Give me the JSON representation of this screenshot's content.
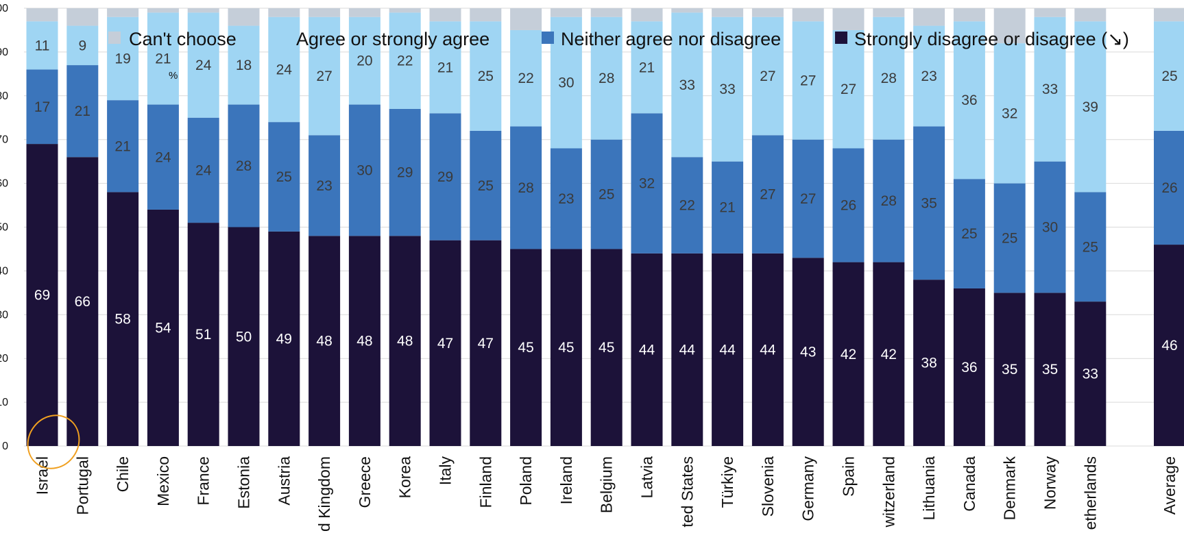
{
  "chart_data": {
    "type": "bar",
    "stacked": true,
    "orientation": "vertical",
    "y_unit_label": "%",
    "ylim": [
      0,
      100
    ],
    "grid": true,
    "legend_placement": "top",
    "categories": [
      "Israel",
      "Portugal",
      "Chile",
      "Mexico",
      "France",
      "Estonia",
      "Austria",
      "United Kingdom",
      "Greece",
      "Korea",
      "Italy",
      "Finland",
      "Poland",
      "Ireland",
      "Belgium",
      "Latvia",
      "United States",
      "Türkiye",
      "Slovenia",
      "Germany",
      "Spain",
      "Switzerland",
      "Lithuania",
      "Canada",
      "Denmark",
      "Norway",
      "Netherlands",
      "Average"
    ],
    "category_labels_shown": [
      "Israel",
      "Portugal",
      "Chile",
      "Mexico",
      "France",
      "Estonia",
      "Austria",
      "d Kingdom",
      "Greece",
      "Korea",
      "Italy",
      "Finland",
      "Poland",
      "Ireland",
      "Belgium",
      "Latvia",
      "ted States",
      "Türkiye",
      "Slovenia",
      "Germany",
      "Spain",
      "witzerland",
      "Lithuania",
      "Canada",
      "Denmark",
      "Norway",
      "etherlands",
      "Average"
    ],
    "series": [
      {
        "name": "Strongly disagree or disagree (↘)",
        "color": "#1c1239",
        "values": [
          69,
          66,
          58,
          54,
          51,
          50,
          49,
          48,
          48,
          48,
          47,
          47,
          45,
          45,
          45,
          44,
          44,
          44,
          44,
          43,
          42,
          42,
          38,
          36,
          35,
          35,
          33,
          46
        ]
      },
      {
        "name": "Neither agree nor disagree",
        "color": "#3b75bb",
        "values": [
          17,
          21,
          21,
          24,
          24,
          28,
          25,
          23,
          30,
          29,
          29,
          25,
          28,
          23,
          25,
          32,
          22,
          21,
          27,
          27,
          26,
          28,
          35,
          25,
          25,
          30,
          25,
          26
        ]
      },
      {
        "name": "Agree or strongly agree",
        "color": "#9fd5f3",
        "values": [
          11,
          9,
          19,
          21,
          24,
          18,
          24,
          27,
          20,
          22,
          21,
          25,
          22,
          30,
          28,
          21,
          33,
          33,
          27,
          27,
          27,
          28,
          23,
          36,
          32,
          33,
          39,
          25
        ]
      },
      {
        "name": "Can't choose",
        "color": "#c5ced9",
        "values": [
          3,
          4,
          2,
          1,
          1,
          4,
          2,
          2,
          2,
          1,
          3,
          3,
          5,
          2,
          2,
          3,
          1,
          2,
          2,
          3,
          5,
          2,
          4,
          3,
          8,
          2,
          3,
          3
        ]
      }
    ],
    "legend": [
      {
        "label": "Can't choose",
        "color": "#c5ced9"
      },
      {
        "label": "Agree or strongly agree",
        "color": "#9fd5f3"
      },
      {
        "label": "Neither agree nor disagree",
        "color": "#3b75bb"
      },
      {
        "label": "Strongly disagree or disagree (↘)",
        "color": "#1c1239"
      }
    ],
    "annotation": "highlight ring around Israel",
    "annotation_color": "#f0a020"
  }
}
